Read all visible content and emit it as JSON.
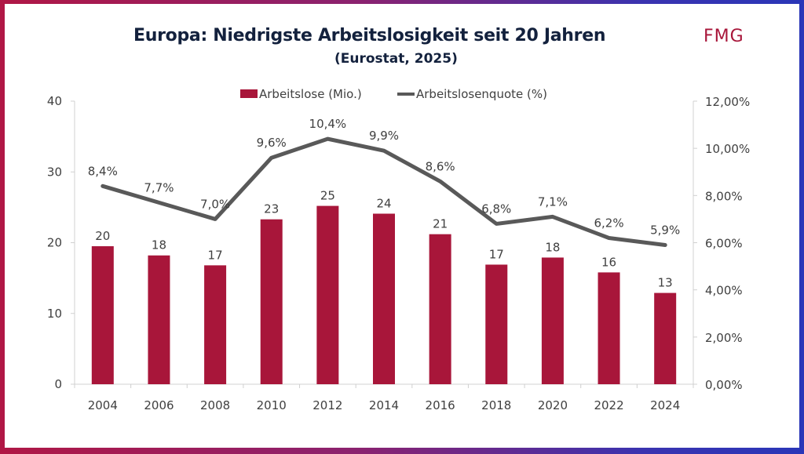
{
  "header": {
    "title": "Europa: Niedrigste Arbeitslosigkeit seit 20 Jahren",
    "subtitle": "(Eurostat, 2025)",
    "logo": "FMG"
  },
  "colors": {
    "bar": "#a8163a",
    "line": "#595959",
    "brand": "#a8163a",
    "title": "#13213d"
  },
  "chart_data": {
    "type": "bar",
    "title": "Europa: Niedrigste Arbeitslosigkeit seit 20 Jahren",
    "subtitle": "(Eurostat, 2025)",
    "categories": [
      "2004",
      "2006",
      "2008",
      "2010",
      "2012",
      "2014",
      "2016",
      "2018",
      "2020",
      "2022",
      "2024"
    ],
    "series": [
      {
        "name": "Arbeitslose (Mio.)",
        "type": "bar",
        "axis": "left",
        "values": [
          19.5,
          18.2,
          16.8,
          23.3,
          25.2,
          24.1,
          21.2,
          16.9,
          17.9,
          15.8,
          12.9
        ],
        "labels": [
          "20",
          "18",
          "17",
          "23",
          "25",
          "24",
          "21",
          "17",
          "18",
          "16",
          "13"
        ]
      },
      {
        "name": "Arbeitslosenquote (%)",
        "type": "line",
        "axis": "right",
        "values": [
          8.4,
          7.7,
          7.0,
          9.6,
          10.4,
          9.9,
          8.6,
          6.8,
          7.1,
          6.2,
          5.9
        ],
        "labels": [
          "8,4%",
          "7,7%",
          "7,0%",
          "9,6%",
          "10,4%",
          "9,9%",
          "8,6%",
          "6,8%",
          "7,1%",
          "6,2%",
          "5,9%"
        ]
      }
    ],
    "y_left": {
      "ylim": [
        0,
        40
      ],
      "ticks": [
        0,
        10,
        20,
        30,
        40
      ],
      "tick_labels": [
        "0",
        "10",
        "20",
        "30",
        "40"
      ]
    },
    "y_right": {
      "ylim": [
        0,
        12
      ],
      "ticks": [
        0,
        2,
        4,
        6,
        8,
        10,
        12
      ],
      "tick_labels": [
        "0,00%",
        "2,00%",
        "4,00%",
        "6,00%",
        "8,00%",
        "10,00%",
        "12,00%"
      ]
    },
    "xlabel": "",
    "ylabel": "",
    "grid": false,
    "legend": {
      "position": "top",
      "entries": [
        "Arbeitslose (Mio.)",
        "Arbeitslosenquote (%)"
      ]
    }
  }
}
